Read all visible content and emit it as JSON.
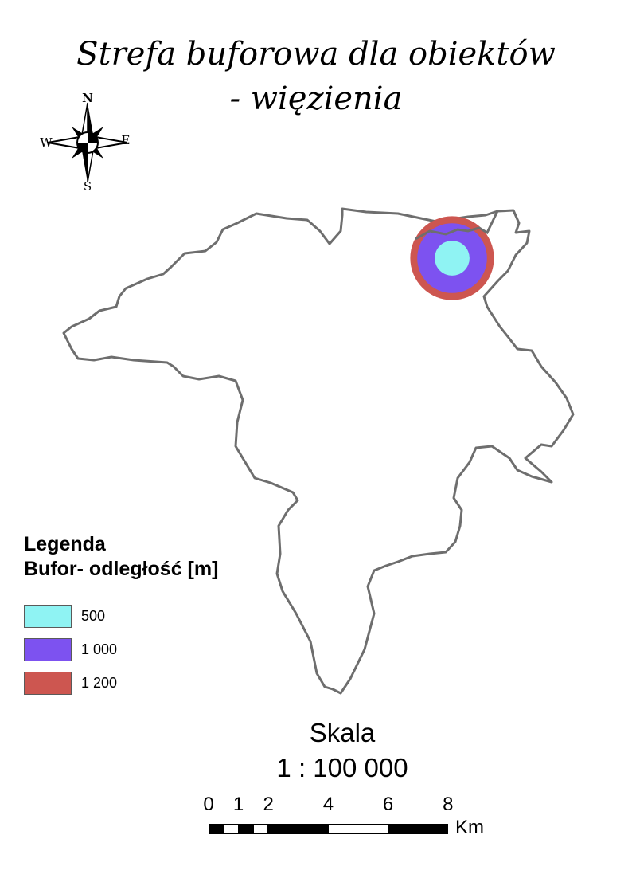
{
  "title": {
    "line1": "Strefa buforowa dla obiektów",
    "line2": "- więzienia"
  },
  "compass": {
    "north": "N",
    "south": "S",
    "east": "E",
    "west": "W"
  },
  "map": {
    "boundary_color": "#6e6e6e",
    "buffer_rings": [
      {
        "distance_m": 1200,
        "color": "#cd5650"
      },
      {
        "distance_m": 1000,
        "color": "#7d52f0"
      },
      {
        "distance_m": 500,
        "color": "#8ff3f3"
      }
    ]
  },
  "legend": {
    "title": "Legenda",
    "subtitle": "Bufor- odległość [m]",
    "items": [
      {
        "label": "500",
        "color": "#8ff3f3"
      },
      {
        "label": "1 000",
        "color": "#7d52f0"
      },
      {
        "label": "1 200",
        "color": "#cd5650"
      }
    ]
  },
  "scale": {
    "label": "Skala",
    "ratio": "1 : 100 000",
    "ticks": [
      "0",
      "1",
      "2",
      "4",
      "6",
      "8"
    ],
    "tick_values_km": [
      0,
      1,
      2,
      4,
      6,
      8
    ],
    "unit": "Km",
    "segments": [
      {
        "from_km": 0,
        "to_km": 0.5,
        "fill": "#000000"
      },
      {
        "from_km": 0.5,
        "to_km": 1,
        "fill": "#ffffff"
      },
      {
        "from_km": 1,
        "to_km": 1.5,
        "fill": "#000000"
      },
      {
        "from_km": 1.5,
        "to_km": 2,
        "fill": "#ffffff"
      },
      {
        "from_km": 2,
        "to_km": 4,
        "fill": "#000000"
      },
      {
        "from_km": 4,
        "to_km": 6,
        "fill": "#ffffff"
      },
      {
        "from_km": 6,
        "to_km": 8,
        "fill": "#000000"
      }
    ]
  }
}
